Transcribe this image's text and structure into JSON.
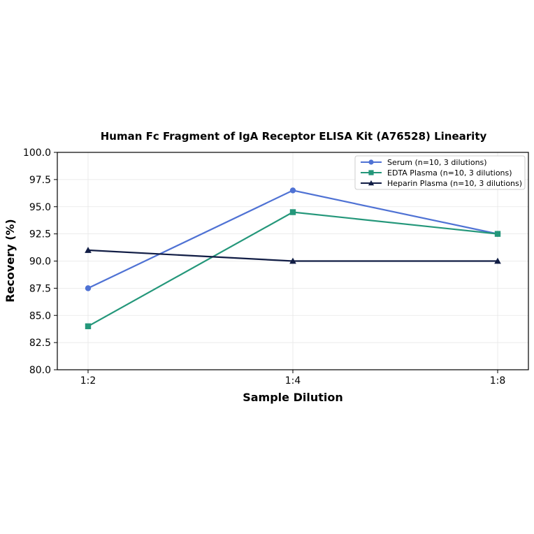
{
  "chart_data": {
    "type": "line",
    "title": "Human Fc Fragment of IgA Receptor ELISA Kit (A76528) Linearity",
    "xlabel": "Sample Dilution",
    "ylabel": "Recovery (%)",
    "categories": [
      "1:2",
      "1:4",
      "1:8"
    ],
    "ylim": [
      80.0,
      100.0
    ],
    "yticks": [
      "80.0",
      "82.5",
      "85.0",
      "87.5",
      "90.0",
      "92.5",
      "95.0",
      "97.5",
      "100.0"
    ],
    "grid": true,
    "legend_position": "top-right",
    "series": [
      {
        "name": "Serum (n=10, 3 dilutions)",
        "values": [
          87.5,
          96.5,
          92.5
        ],
        "color": "#4f72d4",
        "marker": "circle"
      },
      {
        "name": "EDTA Plasma (n=10, 3 dilutions)",
        "values": [
          84.0,
          94.5,
          92.5
        ],
        "color": "#24977a",
        "marker": "square"
      },
      {
        "name": "Heparin Plasma (n=10, 3 dilutions)",
        "values": [
          91.0,
          90.0,
          90.0
        ],
        "color": "#111d45",
        "marker": "triangle"
      }
    ]
  }
}
